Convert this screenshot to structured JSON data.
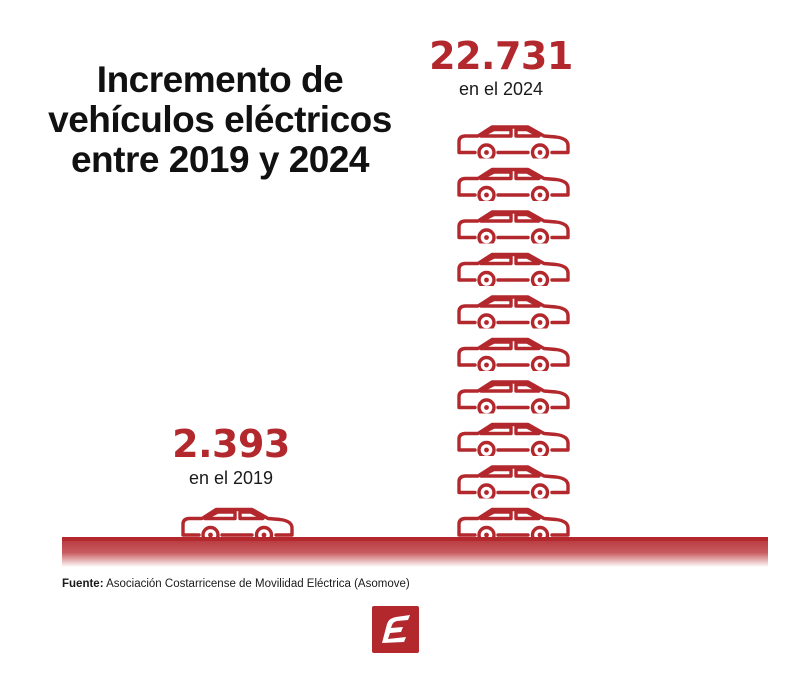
{
  "title_lines": [
    "Incremento de",
    "vehículos eléctricos",
    "entre 2019 y 2024"
  ],
  "chart_data": {
    "type": "bar",
    "categories": [
      "en el 2019",
      "en el 2024"
    ],
    "values": [
      2393,
      22731
    ],
    "value_labels": [
      "2.393",
      "22.731"
    ],
    "icon_counts": [
      1,
      10
    ],
    "icon": "car-icon"
  },
  "source": {
    "label": "Fuente:",
    "text": "Asociación Costarricense de Movilidad Eléctrica (Asomove)"
  },
  "logo": {
    "icon": "e-logo-icon"
  },
  "colors": {
    "accent": "#b3282d",
    "ground": "#b3282d",
    "text": "#1a1a1a"
  }
}
